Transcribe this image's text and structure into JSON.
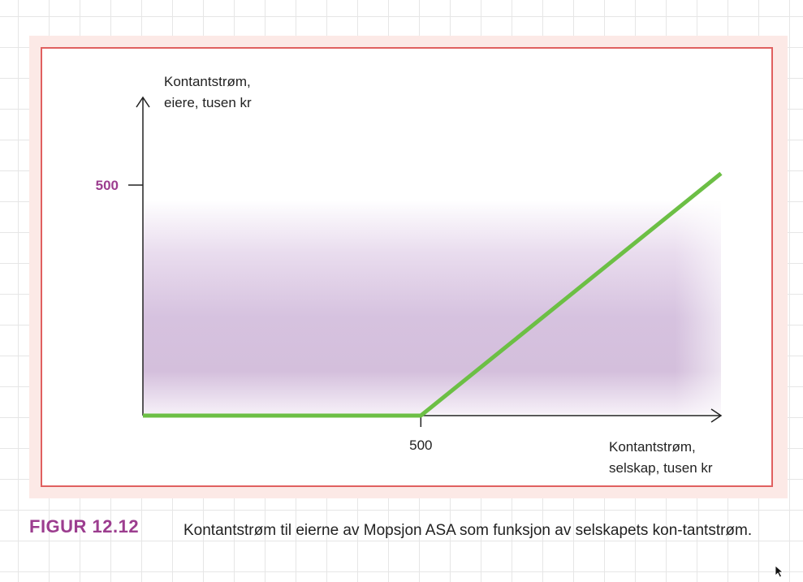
{
  "chart_data": {
    "type": "line",
    "ylabel_lines": [
      "Kontantstrøm,",
      "eiere, tusen kr"
    ],
    "xlabel_lines": [
      "Kontantstrøm,",
      "selskap, tusen kr"
    ],
    "xticks": [
      500
    ],
    "yticks": [
      500
    ],
    "xlim": [
      0,
      1040
    ],
    "ylim": [
      0,
      690
    ],
    "series": [
      {
        "x": [
          0,
          500,
          1040
        ],
        "y": [
          0,
          0,
          525
        ]
      }
    ],
    "colors": {
      "line": "#6cbf45",
      "shading": "#d4bfdc",
      "ytick_label": "#9c3d8f",
      "frame_border": "#e0605f",
      "frame_bg": "#fce9e6"
    }
  },
  "caption": {
    "label": "FIGUR 12.12",
    "label_color": "#9c3d8f",
    "text": "Kontantstrøm til eierne av Mopsjon ASA som funksjon av selskapets kon-tantstrøm."
  }
}
